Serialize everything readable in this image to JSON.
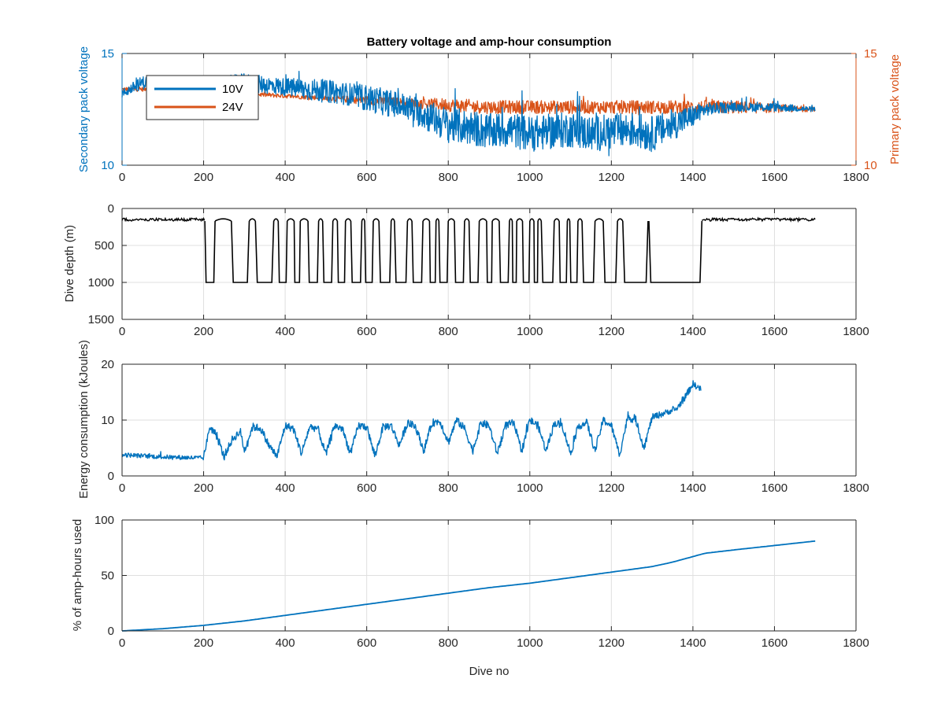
{
  "figure": {
    "colors": {
      "blue": "#0072bd",
      "orange": "#d95319",
      "black": "#000000",
      "axis": "#262626",
      "grid": "#dfdfdf"
    }
  },
  "chart_data": [
    {
      "type": "line",
      "title": "Battery voltage and amp-hour consumption",
      "xlabel": "",
      "ylabel_left": "Secondary pack voltage",
      "ylabel_right": "Primary pack voltage",
      "xlim": [
        0,
        1800
      ],
      "xticks": [
        0,
        200,
        400,
        600,
        800,
        1000,
        1200,
        1400,
        1600,
        1800
      ],
      "ylim_left": [
        10,
        15
      ],
      "yticks_left": [
        10,
        15
      ],
      "ylim_right": [
        10,
        15
      ],
      "yticks_right": [
        10,
        15
      ],
      "grid": true,
      "legend": {
        "placement": "top-left",
        "entries": [
          "10V",
          "24V"
        ]
      },
      "series": [
        {
          "name": "10V",
          "axis": "left",
          "color": "#0072bd",
          "x": [
            0,
            50,
            100,
            150,
            200,
            250,
            300,
            350,
            400,
            450,
            500,
            550,
            600,
            650,
            700,
            750,
            800,
            850,
            900,
            950,
            1000,
            1050,
            1100,
            1150,
            1200,
            1250,
            1300,
            1350,
            1400,
            1430,
            1500,
            1600,
            1700
          ],
          "y": [
            13.2,
            13.7,
            13.6,
            13.6,
            13.5,
            13.6,
            13.7,
            13.6,
            13.5,
            13.4,
            13.3,
            13.2,
            13.0,
            12.8,
            12.6,
            12.2,
            11.8,
            11.7,
            11.5,
            11.6,
            11.4,
            11.5,
            11.6,
            11.4,
            11.5,
            11.6,
            11.4,
            11.8,
            12.2,
            12.5,
            12.6,
            12.6,
            12.5
          ],
          "spread": [
            0.2,
            0.3,
            0.3,
            0.3,
            0.3,
            0.4,
            0.4,
            0.4,
            0.4,
            0.5,
            0.5,
            0.5,
            0.6,
            0.6,
            0.6,
            0.7,
            0.8,
            0.8,
            0.8,
            0.8,
            0.8,
            0.8,
            0.8,
            0.8,
            0.8,
            0.8,
            0.8,
            0.7,
            0.5,
            0.3,
            0.2,
            0.2,
            0.1
          ]
        },
        {
          "name": "24V",
          "axis": "right",
          "color": "#d95319",
          "x": [
            0,
            100,
            200,
            300,
            400,
            500,
            600,
            700,
            800,
            900,
            1000,
            1100,
            1200,
            1300,
            1400,
            1500,
            1600,
            1700
          ],
          "y": [
            13.4,
            13.4,
            13.3,
            13.2,
            13.1,
            13.0,
            12.9,
            12.8,
            12.7,
            12.6,
            12.6,
            12.6,
            12.6,
            12.6,
            12.6,
            12.6,
            12.55,
            12.5
          ],
          "spread": [
            0.1,
            0.1,
            0.1,
            0.1,
            0.1,
            0.1,
            0.2,
            0.2,
            0.3,
            0.3,
            0.3,
            0.3,
            0.3,
            0.3,
            0.3,
            0.3,
            0.2,
            0.1
          ]
        }
      ]
    },
    {
      "type": "line",
      "title": "",
      "xlabel": "",
      "ylabel": "Dive depth (m)",
      "xlim": [
        0,
        1800
      ],
      "xticks": [
        0,
        200,
        400,
        600,
        800,
        1000,
        1200,
        1400,
        1600,
        1800
      ],
      "ylim": [
        0,
        1500
      ],
      "reversed_y": true,
      "yticks": [
        0,
        500,
        1000,
        1500
      ],
      "grid": true,
      "series": [
        {
          "color": "#000000",
          "flat": {
            "start": 0,
            "end": 1700,
            "depth": 150,
            "gap_start": 203,
            "gap_end": 1422
          },
          "excursions": [
            {
              "from": 203,
              "to": 228
            },
            {
              "from": 268,
              "to": 312
            },
            {
              "from": 327,
              "to": 372
            },
            {
              "from": 383,
              "to": 405
            },
            {
              "from": 422,
              "to": 437
            },
            {
              "from": 456,
              "to": 482
            },
            {
              "from": 492,
              "to": 517
            },
            {
              "from": 528,
              "to": 548
            },
            {
              "from": 561,
              "to": 588
            },
            {
              "from": 595,
              "to": 616
            },
            {
              "from": 630,
              "to": 660
            },
            {
              "from": 668,
              "to": 700
            },
            {
              "from": 711,
              "to": 738
            },
            {
              "from": 754,
              "to": 770
            },
            {
              "from": 777,
              "to": 800
            },
            {
              "from": 815,
              "to": 840
            },
            {
              "from": 851,
              "to": 876
            },
            {
              "from": 894,
              "to": 908
            },
            {
              "from": 925,
              "to": 950
            },
            {
              "from": 957,
              "to": 968
            },
            {
              "from": 982,
              "to": 1000
            },
            {
              "from": 1010,
              "to": 1020
            },
            {
              "from": 1028,
              "to": 1060
            },
            {
              "from": 1072,
              "to": 1092
            },
            {
              "from": 1098,
              "to": 1118
            },
            {
              "from": 1128,
              "to": 1160
            },
            {
              "from": 1180,
              "to": 1215
            },
            {
              "from": 1228,
              "to": 1290
            },
            {
              "from": 1292,
              "to": 1422
            }
          ],
          "bottom": 1000
        }
      ]
    },
    {
      "type": "line",
      "title": "",
      "xlabel": "",
      "ylabel": "Energy consumption (kJoules)",
      "xlim": [
        0,
        1800
      ],
      "xticks": [
        0,
        200,
        400,
        600,
        800,
        1000,
        1200,
        1400,
        1600,
        1800
      ],
      "ylim": [
        0,
        20
      ],
      "yticks": [
        0,
        10,
        20
      ],
      "grid": true,
      "series": [
        {
          "color": "#0072bd",
          "x": [
            0,
            50,
            100,
            150,
            200,
            215,
            230,
            250,
            270,
            290,
            300,
            320,
            340,
            360,
            380,
            400,
            420,
            440,
            460,
            480,
            500,
            520,
            540,
            560,
            580,
            600,
            620,
            640,
            660,
            680,
            700,
            720,
            740,
            760,
            780,
            800,
            820,
            840,
            860,
            880,
            900,
            920,
            940,
            960,
            980,
            1000,
            1020,
            1040,
            1060,
            1080,
            1100,
            1120,
            1140,
            1160,
            1180,
            1200,
            1220,
            1240,
            1260,
            1280,
            1300,
            1320,
            1340,
            1360,
            1380,
            1400,
            1420
          ],
          "y": [
            3.8,
            3.6,
            3.4,
            3.3,
            3.2,
            8.8,
            7.5,
            3.5,
            6.5,
            8.0,
            4.5,
            8.8,
            8.5,
            5.5,
            3.5,
            9.0,
            8.5,
            4.0,
            8.8,
            8.5,
            3.8,
            9.0,
            8.5,
            4.0,
            9.0,
            8.8,
            3.5,
            8.8,
            9.0,
            5.5,
            9.5,
            8.8,
            4.5,
            9.5,
            9.8,
            6.0,
            10.0,
            8.5,
            4.5,
            9.5,
            9.0,
            4.0,
            9.0,
            9.5,
            4.5,
            10.0,
            9.0,
            4.5,
            9.5,
            9.0,
            4.0,
            9.0,
            9.5,
            4.5,
            10.0,
            9.0,
            3.8,
            10.5,
            10.0,
            5.0,
            10.5,
            11.0,
            11.5,
            12.0,
            14.0,
            16.5,
            15.5
          ],
          "spread": [
            0.4,
            0.4,
            0.4,
            0.4,
            0.4,
            0.7,
            0.7,
            0.7,
            0.7,
            0.7,
            0.7,
            0.7,
            0.7,
            0.7,
            0.7,
            0.7,
            0.7,
            0.7,
            0.7,
            0.7,
            0.7,
            0.7,
            0.7,
            0.7,
            0.7,
            0.7,
            0.7,
            0.7,
            0.7,
            0.7,
            0.7,
            0.7,
            0.7,
            0.7,
            0.7,
            0.7,
            0.7,
            0.7,
            0.7,
            0.7,
            0.7,
            0.7,
            0.7,
            0.7,
            0.7,
            0.7,
            0.7,
            0.7,
            0.7,
            0.7,
            0.7,
            0.7,
            0.7,
            0.7,
            0.7,
            0.7,
            0.7,
            0.7,
            0.7,
            0.7,
            0.6,
            0.6,
            0.5,
            0.5,
            0.6,
            0.6,
            0.5
          ]
        }
      ]
    },
    {
      "type": "line",
      "title": "",
      "xlabel": "Dive no",
      "ylabel": "% of amp-hours used",
      "xlim": [
        0,
        1800
      ],
      "xticks": [
        0,
        200,
        400,
        600,
        800,
        1000,
        1200,
        1400,
        1600,
        1800
      ],
      "ylim": [
        0,
        100
      ],
      "yticks": [
        0,
        50,
        100
      ],
      "grid": true,
      "series": [
        {
          "color": "#0072bd",
          "x": [
            0,
            100,
            200,
            300,
            400,
            500,
            600,
            700,
            800,
            900,
            1000,
            1100,
            1200,
            1300,
            1350,
            1400,
            1430,
            1500,
            1600,
            1700
          ],
          "y": [
            0,
            2,
            5,
            9,
            14,
            19,
            24,
            29,
            34,
            39,
            43,
            48,
            53,
            58,
            62,
            67,
            70,
            73,
            77,
            81
          ],
          "spread": [
            0,
            0,
            0,
            0,
            0,
            0,
            0,
            0,
            0,
            0,
            0,
            0,
            0,
            0,
            0,
            0,
            0,
            0,
            0,
            0
          ]
        }
      ]
    }
  ]
}
